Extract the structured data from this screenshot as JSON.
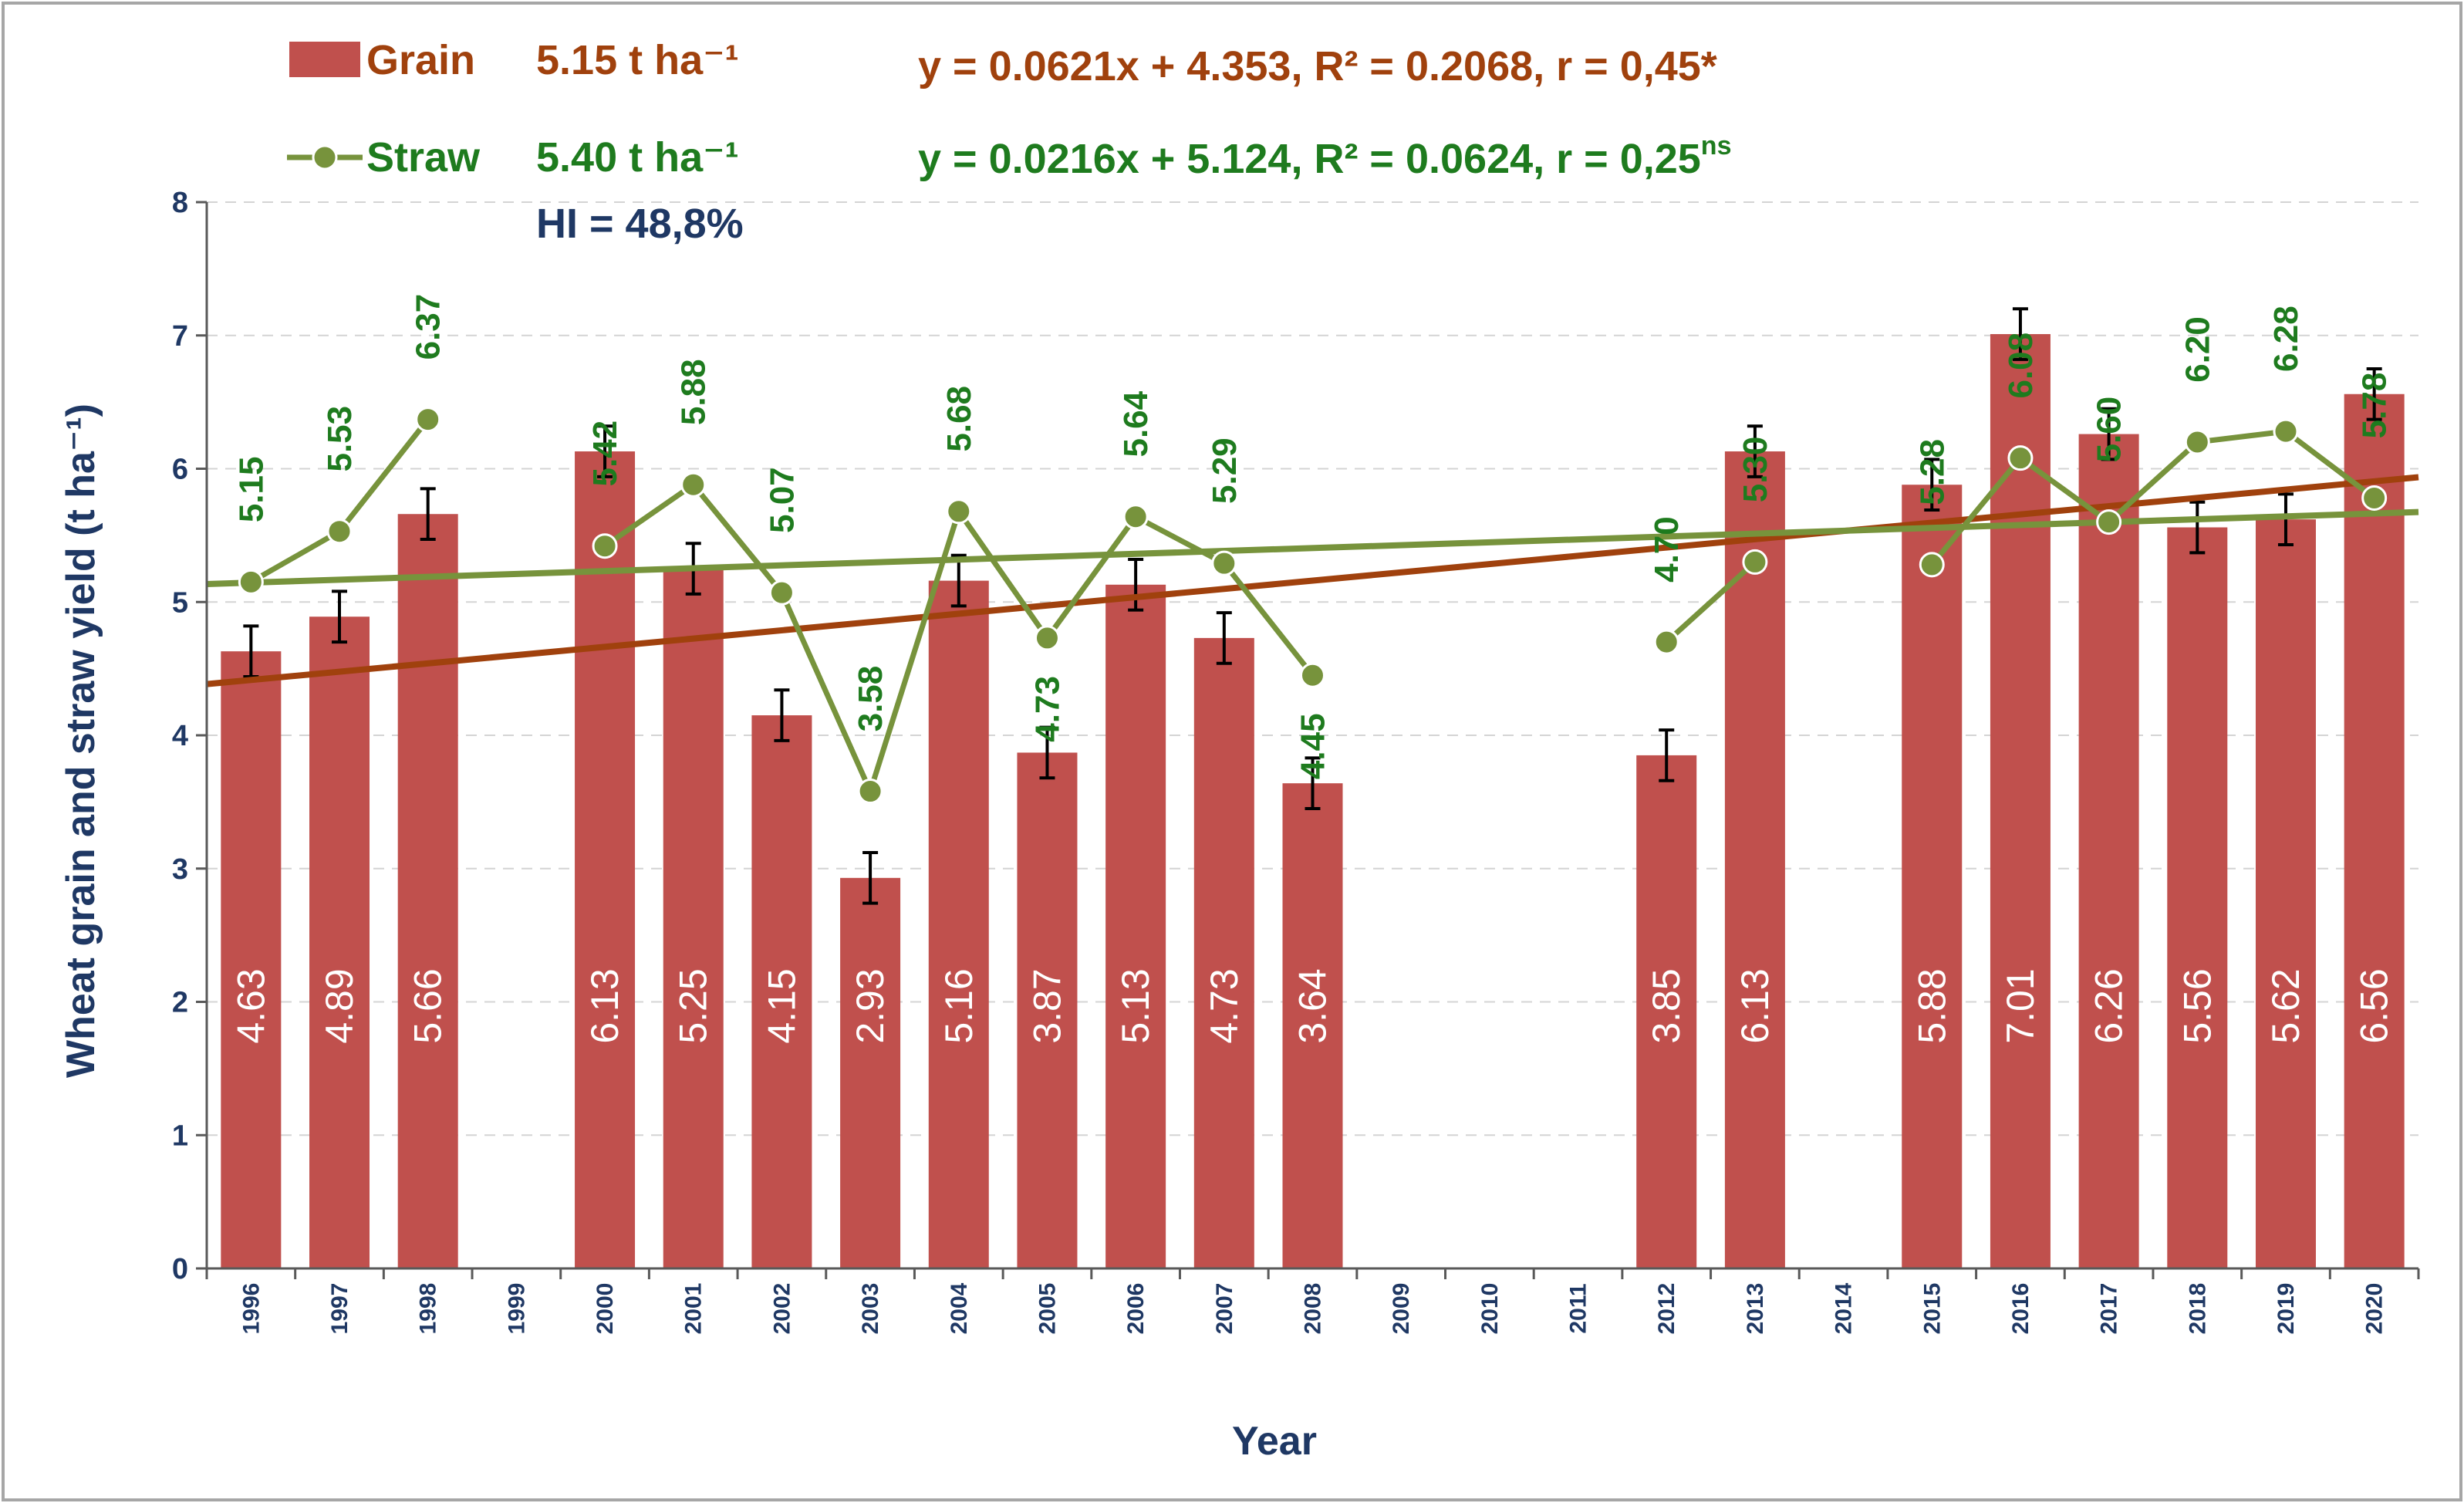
{
  "chart_data": {
    "type": "bar",
    "title": "",
    "xlabel": "Year",
    "ylabel": "Wheat grain and straw yield (t ha⁻¹)",
    "ylim": [
      0,
      8
    ],
    "yticks": [
      "0",
      "1",
      "2",
      "3",
      "4",
      "5",
      "6",
      "7",
      "8"
    ],
    "grid": true,
    "categories": [
      "1996",
      "1997",
      "1998",
      "1999",
      "2000",
      "2001",
      "2002",
      "2003",
      "2004",
      "2005",
      "2006",
      "2007",
      "2008",
      "2009",
      "2010",
      "2011",
      "2012",
      "2013",
      "2014",
      "2015",
      "2016",
      "2017",
      "2018",
      "2019",
      "2020"
    ],
    "series": [
      {
        "name": "Grain",
        "type": "bar",
        "color": "#c0504d",
        "values": [
          4.63,
          4.89,
          5.66,
          null,
          6.13,
          5.25,
          4.15,
          2.93,
          5.16,
          3.87,
          5.13,
          4.73,
          3.64,
          null,
          null,
          null,
          3.85,
          6.13,
          null,
          5.88,
          7.01,
          6.26,
          5.56,
          5.62,
          6.56
        ],
        "labels": [
          "4.63",
          "4.89",
          "5.66",
          "",
          "6.13",
          "5.25",
          "4.15",
          "2.93",
          "5.16",
          "3.87",
          "5.13",
          "4.73",
          "3.64",
          "",
          "",
          "",
          "3.85",
          "6.13",
          "",
          "5.88",
          "7.01",
          "6.26",
          "5.56",
          "5.62",
          "6.56"
        ],
        "error": 0.19,
        "mean": "5.15 t ha⁻¹",
        "trend": {
          "slope": 0.0621,
          "intercept": 4.353,
          "equation": "y = 0.0621x + 4.353, R² = 0.2068, r = 0,45*",
          "color": "#a0410d"
        }
      },
      {
        "name": "Straw",
        "type": "line",
        "color": "#77933c",
        "values": [
          5.15,
          5.53,
          6.37,
          null,
          5.42,
          5.88,
          5.07,
          3.58,
          5.68,
          4.73,
          5.64,
          5.29,
          4.45,
          null,
          null,
          null,
          4.7,
          5.3,
          null,
          5.28,
          6.08,
          5.6,
          6.2,
          6.28,
          5.78
        ],
        "labels": [
          "5.15",
          "5.53",
          "6.37",
          "",
          "5.42",
          "5.88",
          "5.07",
          "3.58",
          "5.68",
          "4.73",
          "5.64",
          "5.29",
          "4.45",
          "",
          "",
          "",
          "4.70",
          "5.30",
          "",
          "5.28",
          "6.08",
          "5.60",
          "6.20",
          "6.28",
          "5.78"
        ],
        "mean": "5.40 t ha⁻¹",
        "trend": {
          "slope": 0.0216,
          "intercept": 5.124,
          "equation_main": "y = 0.0216x + 5.124, R² = 0.0624, r = 0,25",
          "equation_sup": "ns",
          "color": "#77933c"
        }
      }
    ],
    "annotations": {
      "hi": "HI = 48,8%"
    },
    "colors": {
      "grain_text": "#a0410d",
      "straw_text": "#1e7b1e",
      "hi_text": "#1f3864",
      "axis_text": "#1f3864"
    }
  }
}
